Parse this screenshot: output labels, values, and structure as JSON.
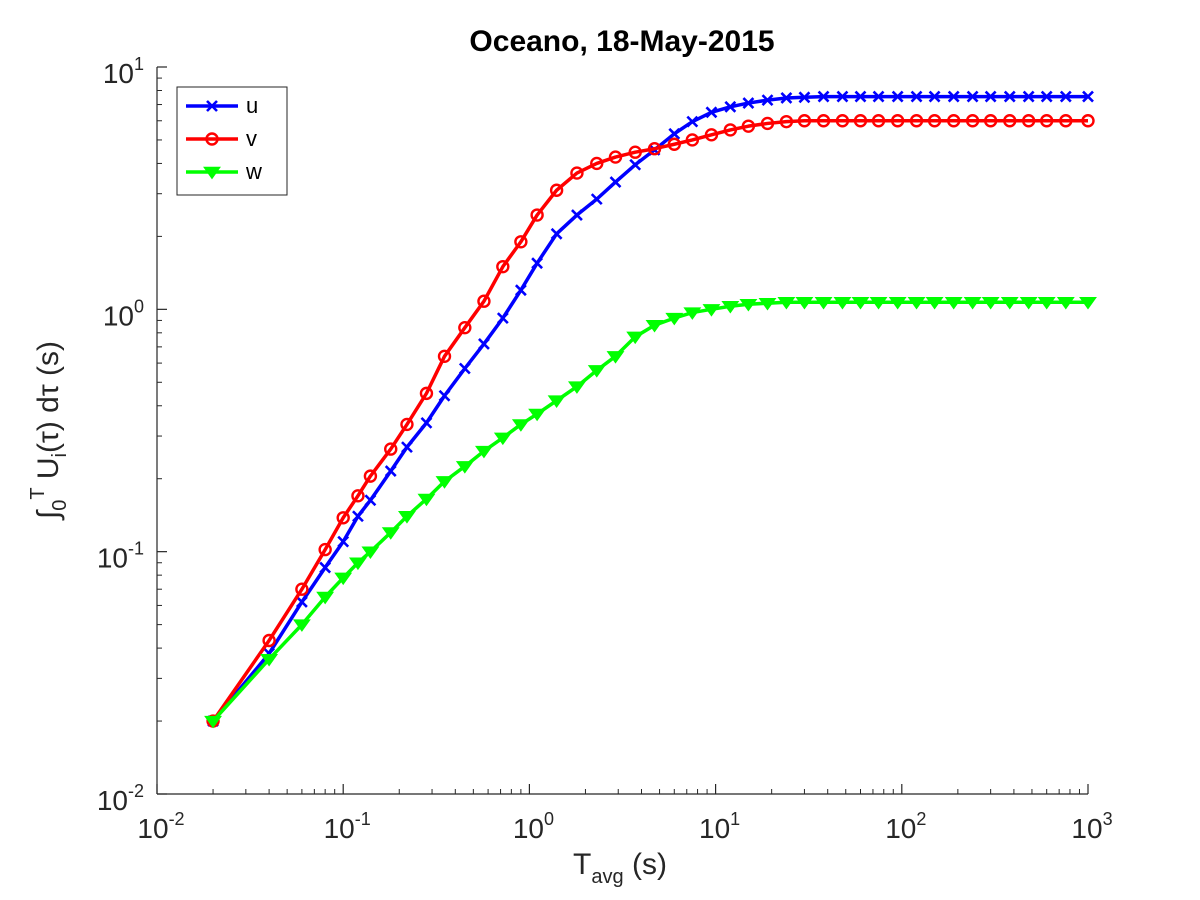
{
  "chart_data": {
    "type": "line",
    "title": "Oceano, 18-May-2015",
    "x_scale": "log",
    "y_scale": "log",
    "xlim": [
      0.01,
      1000
    ],
    "ylim": [
      0.01,
      10
    ],
    "grid": false,
    "legend_placement": "top-left",
    "xlabel": {
      "main": "T",
      "sub": "avg",
      "rest": " (s)"
    },
    "ylabel": {
      "integral": "∫",
      "sub0": "0",
      "supT": "T",
      "main": " U",
      "subi": "i",
      "rest": "(τ) dτ (s)"
    },
    "x_ticks": [
      {
        "value": 0.01,
        "base": "10",
        "exp": "-2"
      },
      {
        "value": 0.1,
        "base": "10",
        "exp": "-1"
      },
      {
        "value": 1,
        "base": "10",
        "exp": "0"
      },
      {
        "value": 10,
        "base": "10",
        "exp": "1"
      },
      {
        "value": 100,
        "base": "10",
        "exp": "2"
      },
      {
        "value": 1000,
        "base": "10",
        "exp": "3"
      }
    ],
    "y_ticks": [
      {
        "value": 0.01,
        "base": "10",
        "exp": "-2"
      },
      {
        "value": 0.1,
        "base": "10",
        "exp": "-1"
      },
      {
        "value": 1,
        "base": "10",
        "exp": "0"
      },
      {
        "value": 10,
        "base": "10",
        "exp": "1"
      }
    ],
    "series": [
      {
        "name": "u",
        "color": "#0000ff",
        "marker": "x",
        "x": [
          0.02,
          0.04,
          0.06,
          0.08,
          0.1,
          0.12,
          0.14,
          0.18,
          0.22,
          0.28,
          0.35,
          0.45,
          0.57,
          0.72,
          0.9,
          1.1,
          1.4,
          1.8,
          2.3,
          2.9,
          3.7,
          4.7,
          6,
          7.5,
          9.5,
          12,
          15,
          19,
          24,
          30,
          38,
          48,
          60,
          75,
          95,
          120,
          150,
          190,
          240,
          300,
          380,
          480,
          600,
          760,
          1000
        ],
        "y": [
          0.02,
          0.038,
          0.062,
          0.086,
          0.11,
          0.14,
          0.163,
          0.215,
          0.27,
          0.34,
          0.44,
          0.57,
          0.72,
          0.92,
          1.2,
          1.55,
          2.05,
          2.45,
          2.85,
          3.35,
          3.95,
          4.55,
          5.3,
          5.95,
          6.5,
          6.85,
          7.1,
          7.3,
          7.45,
          7.5,
          7.55,
          7.55,
          7.55,
          7.55,
          7.55,
          7.55,
          7.55,
          7.55,
          7.55,
          7.55,
          7.55,
          7.55,
          7.55,
          7.55,
          7.55
        ]
      },
      {
        "name": "v",
        "color": "#ff0000",
        "marker": "o",
        "x": [
          0.02,
          0.04,
          0.06,
          0.08,
          0.1,
          0.12,
          0.14,
          0.18,
          0.22,
          0.28,
          0.35,
          0.45,
          0.57,
          0.72,
          0.9,
          1.1,
          1.4,
          1.8,
          2.3,
          2.9,
          3.7,
          4.7,
          6,
          7.5,
          9.5,
          12,
          15,
          19,
          24,
          30,
          38,
          48,
          60,
          75,
          95,
          120,
          150,
          190,
          240,
          300,
          380,
          480,
          600,
          760,
          1000
        ],
        "y": [
          0.02,
          0.043,
          0.07,
          0.102,
          0.138,
          0.17,
          0.205,
          0.265,
          0.335,
          0.45,
          0.64,
          0.84,
          1.08,
          1.5,
          1.9,
          2.45,
          3.1,
          3.65,
          4.0,
          4.25,
          4.45,
          4.6,
          4.8,
          5.0,
          5.25,
          5.5,
          5.7,
          5.85,
          5.95,
          6.0,
          6.0,
          6.0,
          6.0,
          6.0,
          6.0,
          6.0,
          6.0,
          6.0,
          6.0,
          6.0,
          6.0,
          6.0,
          6.0,
          6.0,
          6.0
        ]
      },
      {
        "name": "w",
        "color": "#00ff00",
        "marker": "v",
        "x": [
          0.02,
          0.04,
          0.06,
          0.08,
          0.1,
          0.12,
          0.14,
          0.18,
          0.22,
          0.28,
          0.35,
          0.45,
          0.57,
          0.72,
          0.9,
          1.1,
          1.4,
          1.8,
          2.3,
          2.9,
          3.7,
          4.7,
          6,
          7.5,
          9.5,
          12,
          15,
          19,
          24,
          30,
          38,
          48,
          60,
          75,
          95,
          120,
          150,
          190,
          240,
          300,
          380,
          480,
          600,
          760,
          1000
        ],
        "y": [
          0.02,
          0.036,
          0.05,
          0.065,
          0.078,
          0.09,
          0.1,
          0.12,
          0.14,
          0.165,
          0.195,
          0.225,
          0.26,
          0.295,
          0.335,
          0.37,
          0.42,
          0.48,
          0.56,
          0.64,
          0.77,
          0.86,
          0.92,
          0.97,
          1.0,
          1.03,
          1.05,
          1.06,
          1.07,
          1.07,
          1.07,
          1.07,
          1.07,
          1.07,
          1.07,
          1.07,
          1.07,
          1.07,
          1.07,
          1.07,
          1.07,
          1.07,
          1.07,
          1.07,
          1.07
        ]
      }
    ]
  }
}
